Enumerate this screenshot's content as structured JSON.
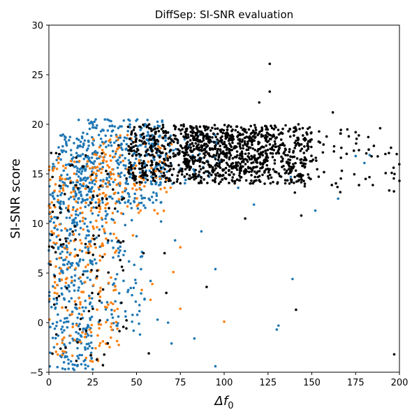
{
  "chart_data": {
    "type": "scatter",
    "title": "DiffSep: SI-SNR evaluation",
    "xlabel": "Δf",
    "xlabel_subscript": "0",
    "ylabel": "SI-SNR score",
    "xlim": [
      0,
      200
    ],
    "ylim": [
      -5,
      30
    ],
    "xticks": [
      0,
      25,
      50,
      75,
      100,
      125,
      150,
      175,
      200
    ],
    "yticks": [
      -5,
      0,
      5,
      10,
      15,
      20,
      25,
      30
    ],
    "grid": false,
    "legend": "none",
    "series": [
      {
        "color": "#1f77b4",
        "clusters": [
          {
            "x": [
              0,
              25
            ],
            "y": [
              -4.8,
              19
            ],
            "n": 420
          },
          {
            "x": [
              15,
              65
            ],
            "y": [
              12,
              20.5
            ],
            "n": 360
          },
          {
            "x": [
              25,
              55
            ],
            "y": [
              -1,
              12
            ],
            "n": 90
          },
          {
            "x": [
              55,
              100
            ],
            "y": [
              14,
              19
            ],
            "n": 90
          }
        ],
        "points": [
          {
            "x": 62,
            "y": 0.3
          },
          {
            "x": 68,
            "y": 0.0
          },
          {
            "x": 70,
            "y": -2.1
          },
          {
            "x": 83,
            "y": -1.6
          },
          {
            "x": 95,
            "y": -4.4
          },
          {
            "x": 95,
            "y": 5.4
          },
          {
            "x": 131,
            "y": -0.3
          },
          {
            "x": 130,
            "y": -0.7
          },
          {
            "x": 139,
            "y": 4.4
          },
          {
            "x": 152,
            "y": 11.3
          },
          {
            "x": 165,
            "y": 12.5
          },
          {
            "x": 175,
            "y": 16.8
          },
          {
            "x": 180,
            "y": 16.1
          },
          {
            "x": 183,
            "y": 16.9
          },
          {
            "x": 138,
            "y": 14.7
          },
          {
            "x": 117,
            "y": 11.9
          },
          {
            "x": 108,
            "y": 13.6
          },
          {
            "x": 87,
            "y": 9.2
          },
          {
            "x": 72,
            "y": 8.3
          },
          {
            "x": 64,
            "y": 10.2
          },
          {
            "x": 58,
            "y": 4.2
          },
          {
            "x": 52,
            "y": -1.2
          },
          {
            "x": 45,
            "y": 3.1
          }
        ]
      },
      {
        "color": "#ff7f0e",
        "clusters": [
          {
            "x": [
              0,
              40
            ],
            "y": [
              -4,
              17
            ],
            "n": 240
          },
          {
            "x": [
              25,
              70
            ],
            "y": [
              11,
              19
            ],
            "n": 110
          }
        ],
        "points": [
          {
            "x": 58,
            "y": 2.3
          },
          {
            "x": 59,
            "y": 3.9
          },
          {
            "x": 71,
            "y": 5.1
          },
          {
            "x": 75,
            "y": 1.4
          },
          {
            "x": 75,
            "y": 7.6
          },
          {
            "x": 100,
            "y": 0.1
          },
          {
            "x": 53,
            "y": 3.3
          },
          {
            "x": 48,
            "y": 8.8
          },
          {
            "x": 62,
            "y": 11.0
          }
        ]
      },
      {
        "color": "#000000",
        "clusters": [
          {
            "x": [
              45,
              150
            ],
            "y": [
              14,
              20
            ],
            "n": 900
          },
          {
            "x": [
              75,
              125
            ],
            "y": [
              15.5,
              19.5
            ],
            "n": 250
          },
          {
            "x": [
              140,
              200
            ],
            "y": [
              13,
              19.5
            ],
            "n": 70
          },
          {
            "x": [
              0,
              45
            ],
            "y": [
              -4.5,
              18
            ],
            "n": 110
          }
        ],
        "points": [
          {
            "x": 126,
            "y": 26.1
          },
          {
            "x": 126,
            "y": 23.3
          },
          {
            "x": 120,
            "y": 22.2
          },
          {
            "x": 162,
            "y": 21.2
          },
          {
            "x": 141,
            "y": 1.3
          },
          {
            "x": 197,
            "y": -3.2
          },
          {
            "x": 90,
            "y": 3.6
          },
          {
            "x": 67,
            "y": 3.0
          },
          {
            "x": 57,
            "y": -3.1
          },
          {
            "x": 200,
            "y": 14.3
          },
          {
            "x": 112,
            "y": 10.5
          },
          {
            "x": 144,
            "y": 10.8
          },
          {
            "x": 189,
            "y": 19.6
          },
          {
            "x": 192,
            "y": 17.0
          },
          {
            "x": 194,
            "y": 17.1
          },
          {
            "x": 175,
            "y": 19.2
          },
          {
            "x": 66,
            "y": 7.0
          },
          {
            "x": 54,
            "y": 7.0
          }
        ]
      }
    ]
  }
}
